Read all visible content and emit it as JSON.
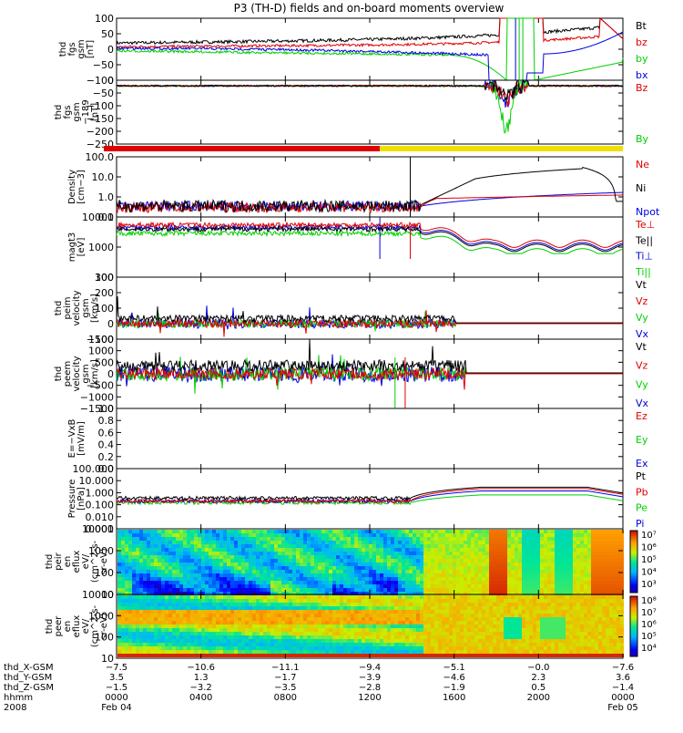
{
  "title": "P3 (TH-D) fields and on-board moments overview",
  "colors": {
    "black": "#000000",
    "red": "#e00000",
    "green": "#00d000",
    "blue": "#0000e0",
    "yellow": "#f0e000"
  },
  "chart_data": [
    {
      "type": "line",
      "panel": "fgs",
      "ylabel": [
        "thd",
        "fgs",
        "gsm",
        "[nT]"
      ],
      "ylim": [
        -100,
        100
      ],
      "yticks": [
        "100",
        "50",
        "0",
        "−50",
        "−100"
      ],
      "legend": [
        {
          "label": "Bt",
          "color": "#000000"
        },
        {
          "label": "bz",
          "color": "#e00000"
        },
        {
          "label": "by",
          "color": "#00d000"
        },
        {
          "label": "bx",
          "color": "#0000e0"
        }
      ]
    },
    {
      "type": "line",
      "panel": "fgs-dc",
      "ylabel": [
        "thd",
        "fgs",
        "gsm",
        "−189",
        "[nT]"
      ],
      "ylim": [
        -250,
        0
      ],
      "yticks": [
        "0",
        "−50",
        "−100",
        "−150",
        "−200",
        "−250"
      ],
      "legend": [
        {
          "label": "Bz",
          "color": "#e00000"
        },
        {
          "label": "By",
          "color": "#00d000"
        }
      ]
    },
    {
      "type": "line",
      "panel": "density",
      "ylabel": [
        "Density",
        "[cm−3]"
      ],
      "ylim": [
        0.1,
        100
      ],
      "yscale": "log",
      "yticks": [
        "100.0",
        "10.0",
        "1.0",
        "0.1"
      ],
      "legend": [
        {
          "label": "Ne",
          "color": "#e00000"
        },
        {
          "label": "Ni",
          "color": "#000000"
        },
        {
          "label": "Npot",
          "color": "#0000e0"
        }
      ]
    },
    {
      "type": "line",
      "panel": "temperature",
      "ylabel": [
        "magt3",
        "[eV]"
      ],
      "ylim": [
        10,
        10000
      ],
      "yscale": "log",
      "yticks": [
        "10000",
        "1000",
        "100"
      ],
      "legend": [
        {
          "label": "Te⊥",
          "color": "#e00000"
        },
        {
          "label": "Te||",
          "color": "#000000"
        },
        {
          "label": "Ti⊥",
          "color": "#0000e0"
        },
        {
          "label": "Ti||",
          "color": "#00d000"
        }
      ]
    },
    {
      "type": "line",
      "panel": "ion-velocity",
      "ylabel": [
        "thd",
        "peim",
        "velocity",
        "gsm",
        "[km/s]"
      ],
      "ylim": [
        -100,
        300
      ],
      "yticks": [
        "300",
        "200",
        "100",
        "0",
        "−100"
      ],
      "legend": [
        {
          "label": "Vt",
          "color": "#000000"
        },
        {
          "label": "Vz",
          "color": "#e00000"
        },
        {
          "label": "Vy",
          "color": "#00d000"
        },
        {
          "label": "Vx",
          "color": "#0000e0"
        }
      ]
    },
    {
      "type": "line",
      "panel": "electron-velocity",
      "ylabel": [
        "thd",
        "peem",
        "velocity",
        "gsm",
        "[km/s]"
      ],
      "ylim": [
        -1500,
        1500
      ],
      "yticks": [
        "1500",
        "1000",
        "500",
        "0",
        "−500",
        "−1000",
        "−1500"
      ],
      "legend": [
        {
          "label": "Vt",
          "color": "#000000"
        },
        {
          "label": "Vz",
          "color": "#e00000"
        },
        {
          "label": "Vy",
          "color": "#00d000"
        },
        {
          "label": "Vx",
          "color": "#0000e0"
        }
      ]
    },
    {
      "type": "line",
      "panel": "efield",
      "ylabel": [
        "E=−VxB",
        "[mV/m]"
      ],
      "ylim": [
        0,
        1
      ],
      "yticks": [
        "1.0",
        "0.8",
        "0.6",
        "0.4",
        "0.2",
        "0.0"
      ],
      "legend": [
        {
          "label": "Ez",
          "color": "#e00000"
        },
        {
          "label": "Ey",
          "color": "#00d000"
        },
        {
          "label": "Ex",
          "color": "#0000e0"
        }
      ]
    },
    {
      "type": "line",
      "panel": "pressure",
      "ylabel": [
        "Pressure",
        "[nPa]"
      ],
      "ylim": [
        0.001,
        100
      ],
      "yscale": "log",
      "yticks": [
        "100.000",
        "10.000",
        "1.000",
        "0.100",
        "0.010",
        "0.001"
      ],
      "legend": [
        {
          "label": "Pt",
          "color": "#000000"
        },
        {
          "label": "Pb",
          "color": "#e00000"
        },
        {
          "label": "Pe",
          "color": "#00d000"
        },
        {
          "label": "Pi",
          "color": "#0000e0"
        }
      ]
    },
    {
      "type": "heatmap",
      "panel": "ion-spectrogram",
      "ylabel": [
        "thd",
        "peir",
        "en",
        "eflux",
        "eV/",
        "(cm^2-s-",
        "sr-eV)"
      ],
      "ylim": [
        10,
        10000
      ],
      "yscale": "log",
      "yticks": [
        "10000",
        "1000",
        "100",
        "10"
      ],
      "colorbar_ticks": [
        "10⁷",
        "10⁶",
        "10⁵",
        "10⁴",
        "10³"
      ]
    },
    {
      "type": "heatmap",
      "panel": "electron-spectrogram",
      "ylabel": [
        "thd",
        "peer",
        "en",
        "eflux",
        "eV/",
        "(cm^2-s-",
        "sr-eV)"
      ],
      "ylim": [
        10,
        10000
      ],
      "yscale": "log",
      "yticks": [
        "10000",
        "1000",
        "100",
        "10"
      ],
      "colorbar_ticks": [
        "10⁸",
        "10⁷",
        "10⁶",
        "10⁵",
        "10⁴"
      ]
    }
  ],
  "x_axis": {
    "rows": [
      {
        "label": "thd_X-GSM",
        "values": [
          "−7.5",
          "−10.6",
          "−11.1",
          "−9.4",
          "−5.1",
          "−0.0",
          "−7.6"
        ]
      },
      {
        "label": "thd_Y-GSM",
        "values": [
          "3.5",
          "1.3",
          "−1.7",
          "−3.9",
          "−4.6",
          "2.3",
          "3.6"
        ]
      },
      {
        "label": "thd_Z-GSM",
        "values": [
          "−1.5",
          "−3.2",
          "−3.5",
          "−2.8",
          "−1.9",
          "0.5",
          "−1.4"
        ]
      },
      {
        "label": "hhmm",
        "values": [
          "0000",
          "0400",
          "0800",
          "1200",
          "1600",
          "2000",
          "0000"
        ]
      },
      {
        "label": "2008",
        "values": [
          "Feb 04",
          "",
          "",
          "",
          "",
          "",
          "Feb 05"
        ]
      }
    ]
  }
}
